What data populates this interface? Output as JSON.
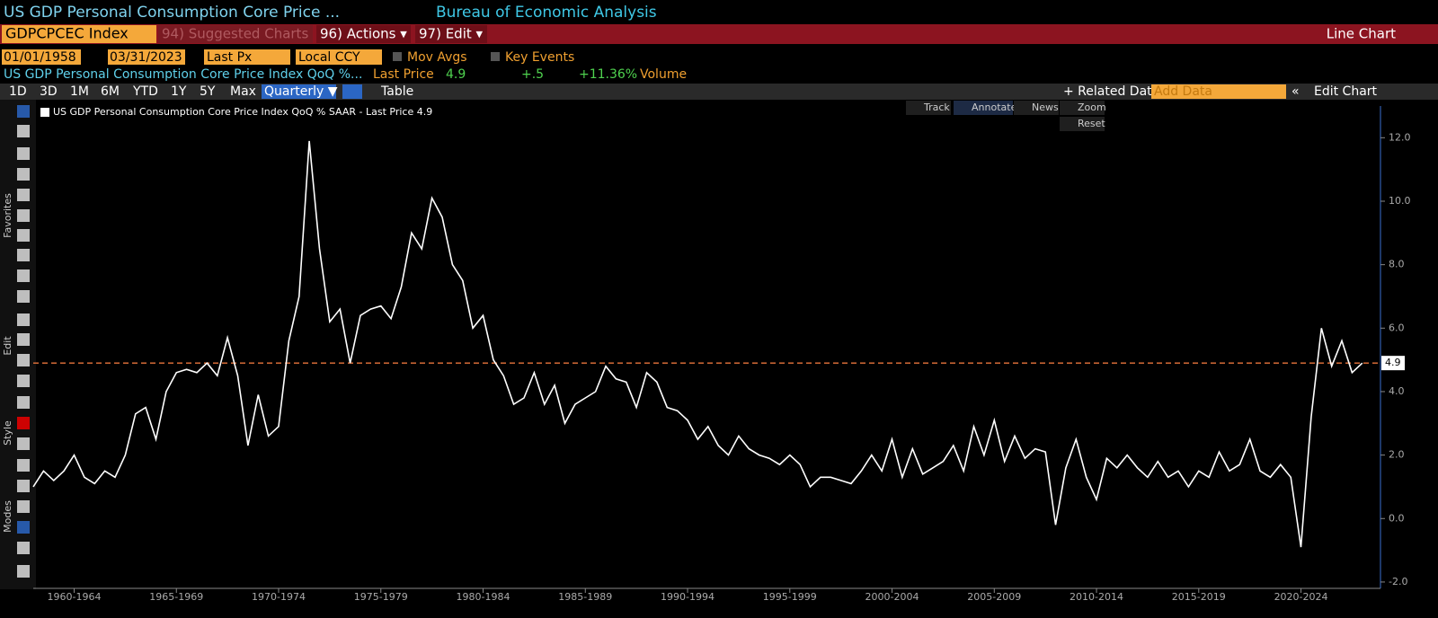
{
  "header": {
    "title": "US GDP Personal Consumption Core Price ...",
    "source": "Bureau of Economic Analysis"
  },
  "menu": {
    "ticker": "GDPCPCEC Index",
    "suggested": "94) Suggested Charts",
    "actions": "96) Actions ▾",
    "edit": "97) Edit ▾",
    "view": "Line Chart"
  },
  "controls": {
    "start": "01/01/1958",
    "end": "03/31/2023",
    "field": "Last Px",
    "currency": "Local CCY",
    "mov_avgs": "Mov Avgs",
    "key_events": "Key Events"
  },
  "quote": {
    "name": "US GDP Personal Consumption Core Price Index QoQ %...",
    "last_label": "Last Price",
    "last": "4.9",
    "change": "+.5",
    "pct": "+11.36%",
    "volume": "Volume"
  },
  "toolbar": {
    "ranges": [
      "1D",
      "3D",
      "1M",
      "6M",
      "YTD",
      "1Y",
      "5Y",
      "Max"
    ],
    "period": "Quarterly ▼",
    "table": "Table",
    "related": "+ Related Data",
    "add": "Add Data",
    "edit_chart": "Edit Chart"
  },
  "chart_buttons": [
    "Track",
    "Annotate",
    "News",
    "Zoom",
    "Reset"
  ],
  "sidebar": [
    "Favorites",
    "Edit",
    "Style",
    "Modes"
  ],
  "chart_data": {
    "type": "line",
    "xlim": [
      1958,
      2023.8
    ],
    "ylim": [
      -2.2,
      13.0
    ],
    "xticks": [
      {
        "value": 1960,
        "label": "1960-1964"
      },
      {
        "value": 1965,
        "label": "1965-1969"
      },
      {
        "value": 1970,
        "label": "1970-1974"
      },
      {
        "value": 1975,
        "label": "1975-1979"
      },
      {
        "value": 1980,
        "label": "1980-1984"
      },
      {
        "value": 1985,
        "label": "1985-1989"
      },
      {
        "value": 1990,
        "label": "1990-1994"
      },
      {
        "value": 1995,
        "label": "1995-1999"
      },
      {
        "value": 2000,
        "label": "2000-2004"
      },
      {
        "value": 2005,
        "label": "2005-2009"
      },
      {
        "value": 2010,
        "label": "2010-2014"
      },
      {
        "value": 2015,
        "label": "2015-2019"
      },
      {
        "value": 2020,
        "label": "2020-2024"
      }
    ],
    "yticks": [
      {
        "value": -2,
        "label": "-2.0"
      },
      {
        "value": 0,
        "label": "0.0"
      },
      {
        "value": 2,
        "label": "2.0"
      },
      {
        "value": 4,
        "label": "4.0"
      },
      {
        "value": 6,
        "label": "6.0"
      },
      {
        "value": 8,
        "label": "8.0"
      },
      {
        "value": 10,
        "label": "10.0"
      },
      {
        "value": 12,
        "label": "12.0"
      }
    ],
    "reference_line": {
      "value": 4.9,
      "color": "#e8743b"
    },
    "series": [
      {
        "name": "US GDP Personal Consumption Core Price Index QoQ % SAAR - Last Price 4.9",
        "color": "#ffffff",
        "x": [
          1958,
          1958.5,
          1959,
          1959.5,
          1960,
          1960.5,
          1961,
          1961.5,
          1962,
          1962.5,
          1963,
          1963.5,
          1964,
          1964.5,
          1965,
          1965.5,
          1966,
          1966.5,
          1967,
          1967.5,
          1968,
          1968.5,
          1969,
          1969.5,
          1970,
          1970.5,
          1971,
          1971.5,
          1972,
          1972.5,
          1973,
          1973.5,
          1974,
          1974.5,
          1975,
          1975.5,
          1976,
          1976.5,
          1977,
          1977.5,
          1978,
          1978.5,
          1979,
          1979.5,
          1980,
          1980.5,
          1981,
          1981.5,
          1982,
          1982.5,
          1983,
          1983.5,
          1984,
          1984.5,
          1985,
          1985.5,
          1986,
          1986.5,
          1987,
          1987.5,
          1988,
          1988.5,
          1989,
          1989.5,
          1990,
          1990.5,
          1991,
          1991.5,
          1992,
          1992.5,
          1993,
          1993.5,
          1994,
          1994.5,
          1995,
          1995.5,
          1996,
          1996.5,
          1997,
          1997.5,
          1998,
          1998.5,
          1999,
          1999.5,
          2000,
          2000.5,
          2001,
          2001.5,
          2002,
          2002.5,
          2003,
          2003.5,
          2004,
          2004.5,
          2005,
          2005.5,
          2006,
          2006.5,
          2007,
          2007.5,
          2008,
          2008.5,
          2009,
          2009.5,
          2010,
          2010.5,
          2011,
          2011.5,
          2012,
          2012.5,
          2013,
          2013.5,
          2014,
          2014.5,
          2015,
          2015.5,
          2016,
          2016.5,
          2017,
          2017.5,
          2018,
          2018.5,
          2019,
          2019.5,
          2020,
          2020.5,
          2021,
          2021.5,
          2022,
          2022.5,
          2023
        ],
        "values": [
          1.0,
          1.5,
          1.2,
          1.5,
          2.0,
          1.3,
          1.1,
          1.5,
          1.3,
          2.0,
          3.3,
          3.5,
          2.5,
          4.0,
          4.6,
          4.7,
          4.6,
          4.9,
          4.5,
          5.7,
          4.5,
          2.3,
          3.9,
          2.6,
          2.9,
          5.6,
          7.0,
          11.9,
          8.5,
          6.2,
          6.6,
          4.9,
          6.4,
          6.6,
          6.7,
          6.3,
          7.3,
          9.0,
          8.5,
          10.1,
          9.5,
          8.0,
          7.5,
          6.0,
          6.4,
          5.0,
          4.5,
          3.6,
          3.8,
          4.6,
          3.6,
          4.2,
          3.0,
          3.6,
          3.8,
          4.0,
          4.8,
          4.4,
          4.3,
          3.5,
          4.6,
          4.3,
          3.5,
          3.4,
          3.1,
          2.5,
          2.9,
          2.3,
          2.0,
          2.6,
          2.2,
          2.0,
          1.9,
          1.7,
          2.0,
          1.7,
          1.0,
          1.3,
          1.3,
          1.2,
          1.1,
          1.5,
          2.0,
          1.5,
          2.5,
          1.3,
          2.2,
          1.4,
          1.6,
          1.8,
          2.3,
          1.5,
          2.9,
          2.0,
          3.1,
          1.8,
          2.6,
          1.9,
          2.2,
          2.1,
          -0.2,
          1.6,
          2.5,
          1.3,
          0.6,
          1.9,
          1.6,
          2.0,
          1.6,
          1.3,
          1.8,
          1.3,
          1.5,
          1.0,
          1.5,
          1.3,
          2.1,
          1.5,
          1.7,
          2.5,
          1.5,
          1.3,
          1.7,
          1.3,
          -0.9,
          3.2,
          6.0,
          4.8,
          5.6,
          4.6,
          4.9
        ]
      }
    ]
  }
}
